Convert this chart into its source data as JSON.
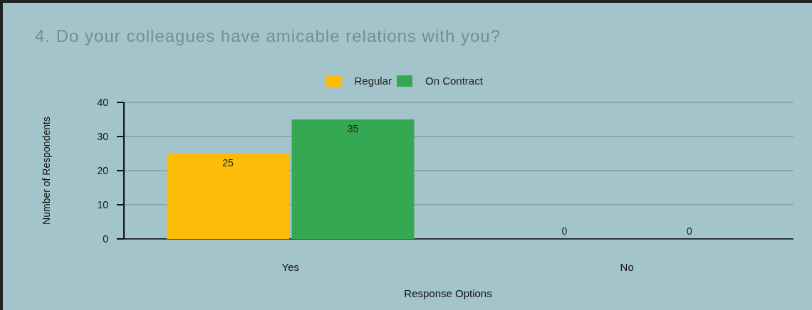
{
  "chart_data": {
    "type": "bar",
    "title": "4. Do your colleagues have amicable relations with you?",
    "xlabel": "Response Options",
    "ylabel": "Number of Respondents",
    "categories": [
      "Yes",
      "No"
    ],
    "series": [
      {
        "name": "Regular",
        "color": "#fbbd08",
        "values": [
          25,
          0
        ]
      },
      {
        "name": "On Contract",
        "color": "#35a853",
        "values": [
          35,
          0
        ]
      }
    ],
    "ylim": [
      0,
      40
    ],
    "yticks": [
      0,
      10,
      20,
      30,
      40
    ],
    "grid": "y",
    "legend": "top",
    "data_labels": true
  }
}
